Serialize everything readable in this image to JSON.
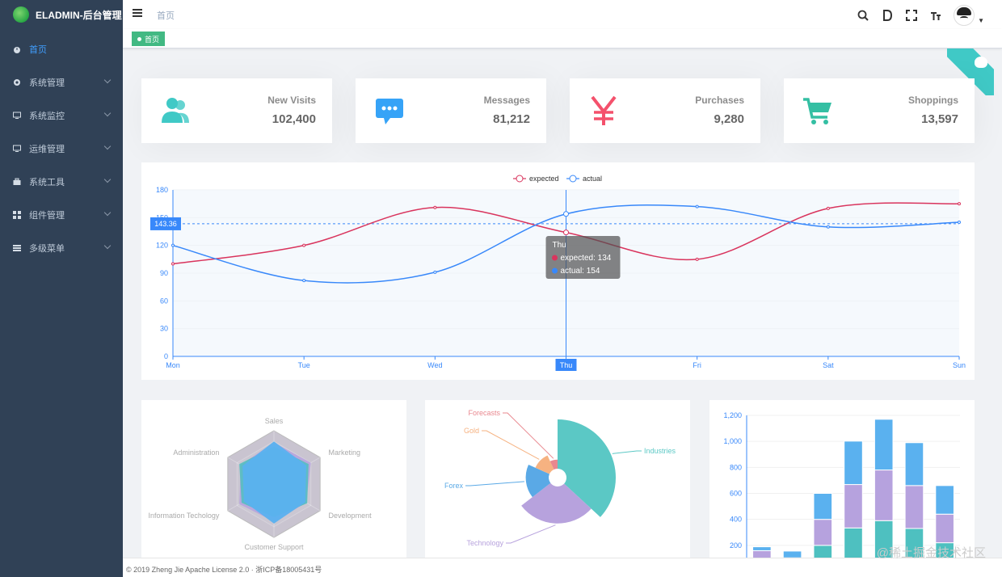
{
  "app": {
    "name": "ELADMIN-后台管理"
  },
  "sidebar": {
    "items": [
      {
        "label": "首页",
        "icon": "dashboard-icon",
        "active": true
      },
      {
        "label": "系统管理",
        "icon": "gear-icon"
      },
      {
        "label": "系统监控",
        "icon": "monitor-icon"
      },
      {
        "label": "运维管理",
        "icon": "server-icon"
      },
      {
        "label": "系统工具",
        "icon": "toolbox-icon"
      },
      {
        "label": "组件管理",
        "icon": "grid-icon"
      },
      {
        "label": "多级菜单",
        "icon": "list-icon"
      }
    ]
  },
  "navbar": {
    "breadcrumb": "首页",
    "icons": [
      "search-icon",
      "docs-icon",
      "fullscreen-icon",
      "font-size-icon"
    ]
  },
  "tags": [
    {
      "label": "首页"
    }
  ],
  "cards": [
    {
      "title": "New Visits",
      "value": "102,400",
      "icon": "people-icon",
      "color": "#40c9c6"
    },
    {
      "title": "Messages",
      "value": "81,212",
      "icon": "message-icon",
      "color": "#36a3f7"
    },
    {
      "title": "Purchases",
      "value": "9,280",
      "icon": "yen-icon",
      "color": "#f4516c"
    },
    {
      "title": "Shoppings",
      "value": "13,597",
      "icon": "shopping-cart-icon",
      "color": "#34bfa3"
    }
  ],
  "chart_data": [
    {
      "type": "line",
      "categories": [
        "Mon",
        "Tue",
        "Wed",
        "Thu",
        "Fri",
        "Sat",
        "Sun"
      ],
      "series": [
        {
          "name": "expected",
          "values": [
            100,
            120,
            161,
            134,
            105,
            160,
            165
          ],
          "color": "#d9345d"
        },
        {
          "name": "actual",
          "values": [
            120,
            82,
            91,
            154,
            162,
            140,
            145
          ],
          "color": "#3888fa"
        }
      ],
      "ylim": [
        0,
        180
      ],
      "yticks": [
        0,
        30,
        60,
        90,
        120,
        150,
        180
      ],
      "legend": "top-center",
      "crosshair": {
        "category": "Thu",
        "y_label": "143.36"
      },
      "tooltip": {
        "title": "Thu",
        "lines": [
          "expected: 134",
          "actual: 154"
        ]
      }
    },
    {
      "type": "radar",
      "indicators": [
        "Sales",
        "Marketing",
        "Development",
        "Customer Support",
        "Information Techology",
        "Administration"
      ]
    },
    {
      "type": "pie",
      "labels": [
        "Industries",
        "Technology",
        "Forex",
        "Gold",
        "Forecasts"
      ],
      "values": [
        320,
        240,
        149,
        100,
        59
      ],
      "colors": [
        "#5bc8c5",
        "#b7a2dd",
        "#5aa9e6",
        "#f6b281",
        "#e9888f"
      ]
    },
    {
      "type": "bar",
      "stacked": true,
      "yticks": [
        "200",
        "400",
        "600",
        "800",
        "1,000",
        "1,200"
      ],
      "ylim": [
        0,
        1200
      ],
      "series": [
        {
          "values": [
            79,
            52,
            200,
            334,
            390,
            330,
            220
          ],
          "color": "#4ec0c0"
        },
        {
          "values": [
            80,
            52,
            200,
            334,
            390,
            330,
            220
          ],
          "color": "#b6a2de"
        },
        {
          "values": [
            30,
            52,
            200,
            334,
            390,
            330,
            220
          ],
          "color": "#5ab1ef"
        }
      ]
    }
  ],
  "footer": {
    "text": "© 2019 Zheng Jie Apache License 2.0 · 浙ICP备18005431号"
  },
  "watermark": "@稀土掘金技术社区"
}
